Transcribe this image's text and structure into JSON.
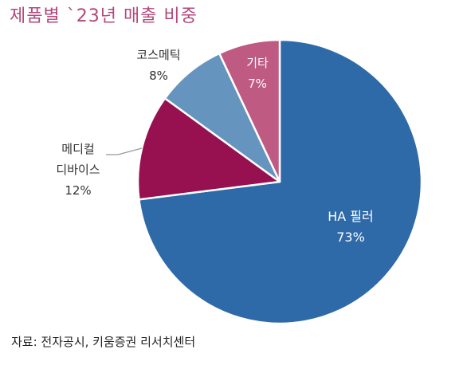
{
  "title": "제품별 `23년 매출 비중",
  "source": "자료: 전자공시, 키움증권 리서치센터",
  "colors": {
    "title": "#b3487c",
    "ha_filler": "#2e6aa8",
    "medical_device": "#97104f",
    "cosmetic": "#6594bf",
    "other": "#bf5a83"
  },
  "chart_data": {
    "type": "pie",
    "title": "제품별 `23년 매출 비중",
    "slices": [
      {
        "label": [
          "HA 필러"
        ],
        "value": 73,
        "value_label": "73%",
        "color": "#2e6aa8",
        "label_color": "#ffffff"
      },
      {
        "label": [
          "메디컬",
          "디바이스"
        ],
        "value": 12,
        "value_label": "12%",
        "color": "#97104f",
        "label_color": "#333333"
      },
      {
        "label": [
          "코스메틱"
        ],
        "value": 8,
        "value_label": "8%",
        "color": "#6594bf",
        "label_color": "#333333"
      },
      {
        "label": [
          "기타"
        ],
        "value": 7,
        "value_label": "7%",
        "color": "#bf5a83",
        "label_color": "#ffffff"
      }
    ],
    "start": "12 o'clock",
    "direction": "clockwise"
  }
}
